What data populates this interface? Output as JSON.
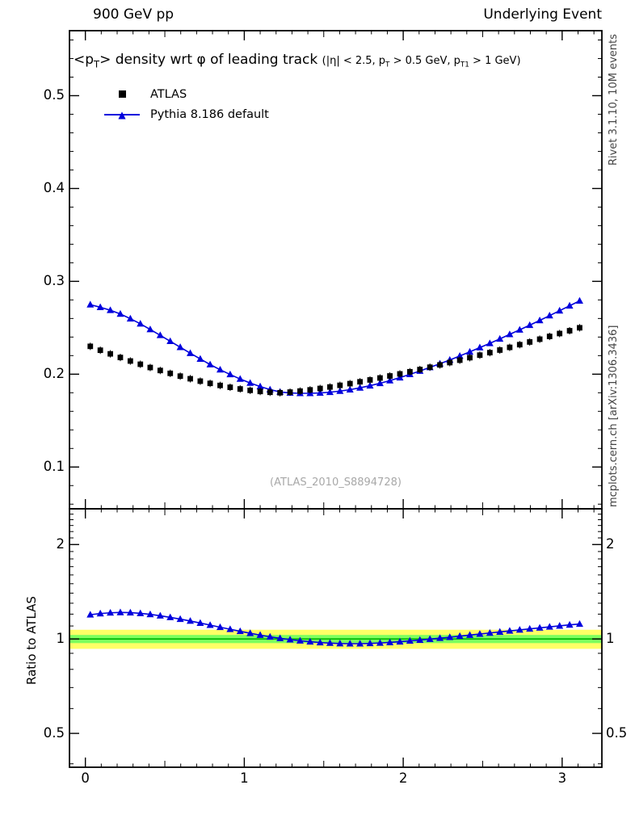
{
  "header": {
    "left": "900 GeV pp",
    "right": "Underlying Event"
  },
  "main_panel": {
    "title": {
      "p1": "<p",
      "p1_sub": "T",
      "p2": "> density wrt φ of leading track ",
      "c1": "(|η| < 2.5, p",
      "c1_sub": "T",
      "c2": " > 0.5 GeV, p",
      "c2_sub": "T1",
      "c3": " > 1 GeV)"
    },
    "legend": [
      {
        "label": "ATLAS",
        "marker": "square",
        "color": "#000000"
      },
      {
        "label": "Pythia 8.186 default",
        "marker": "triangle-line",
        "color": "#0000dd"
      }
    ],
    "watermark": "(ATLAS_2010_S8894728)"
  },
  "ratio_panel": {
    "ylabel": "Ratio to ATLAS"
  },
  "side_labels": {
    "right_top": "Rivet 3.1.10, 10M events",
    "right_bottom": "mcplots.cern.ch [arXiv:1306.3436]"
  },
  "chart_data": [
    {
      "type": "scatter",
      "panel": "main",
      "title": "<pT> density wrt φ of leading track (|η| < 2.5, pT > 0.5 GeV, pT1 > 1 GeV)",
      "xlabel": "",
      "ylabel": "",
      "xlim": [
        -0.1,
        3.25
      ],
      "ylim": [
        0.055,
        0.57
      ],
      "xticks": [
        0,
        1,
        2,
        3
      ],
      "xtick_labels": [
        "0",
        "1",
        "2",
        "3"
      ],
      "yticks": [
        0.1,
        0.2,
        0.3,
        0.4,
        0.5
      ],
      "ytick_labels": [
        "0.1",
        "0.2",
        "0.3",
        "0.4",
        "0.5"
      ],
      "legend_position": "top-left",
      "grid": false,
      "x": [
        0.031,
        0.094,
        0.157,
        0.22,
        0.283,
        0.346,
        0.408,
        0.471,
        0.534,
        0.597,
        0.66,
        0.723,
        0.785,
        0.848,
        0.911,
        0.974,
        1.037,
        1.1,
        1.162,
        1.225,
        1.288,
        1.351,
        1.414,
        1.477,
        1.539,
        1.602,
        1.665,
        1.728,
        1.791,
        1.854,
        1.916,
        1.979,
        2.042,
        2.105,
        2.168,
        2.231,
        2.293,
        2.356,
        2.419,
        2.482,
        2.545,
        2.608,
        2.67,
        2.733,
        2.796,
        2.859,
        2.921,
        2.984,
        3.047,
        3.11
      ],
      "series": [
        {
          "name": "ATLAS",
          "marker": "square",
          "color": "#000000",
          "line": false,
          "yerr": 0.004,
          "y": [
            0.23,
            0.2258,
            0.2219,
            0.218,
            0.2142,
            0.2107,
            0.2072,
            0.204,
            0.2009,
            0.1979,
            0.1951,
            0.1925,
            0.1901,
            0.1879,
            0.1859,
            0.1841,
            0.1826,
            0.1814,
            0.1805,
            0.18,
            0.1807,
            0.1818,
            0.1831,
            0.1846,
            0.1862,
            0.188,
            0.1898,
            0.1918,
            0.1938,
            0.1959,
            0.1981,
            0.2003,
            0.2026,
            0.205,
            0.2075,
            0.21,
            0.2125,
            0.2151,
            0.2178,
            0.2205,
            0.2232,
            0.226,
            0.2289,
            0.2318,
            0.2347,
            0.2377,
            0.2407,
            0.2438,
            0.2468,
            0.25
          ]
        },
        {
          "name": "Pythia 8.186 default",
          "marker": "triangle",
          "color": "#0000dd",
          "line": true,
          "y": [
            0.2749,
            0.2721,
            0.2689,
            0.2649,
            0.2598,
            0.2543,
            0.2482,
            0.2419,
            0.2355,
            0.229,
            0.2226,
            0.2164,
            0.2104,
            0.2048,
            0.1997,
            0.1948,
            0.1905,
            0.1867,
            0.1834,
            0.1809,
            0.1798,
            0.1794,
            0.1794,
            0.1798,
            0.1806,
            0.1818,
            0.1833,
            0.1853,
            0.1876,
            0.1902,
            0.1931,
            0.1963,
            0.1998,
            0.2034,
            0.2073,
            0.2113,
            0.2153,
            0.2196,
            0.2241,
            0.2287,
            0.2332,
            0.238,
            0.2429,
            0.2478,
            0.2528,
            0.2579,
            0.2631,
            0.2684,
            0.2737,
            0.279
          ]
        }
      ]
    },
    {
      "type": "line",
      "panel": "ratio",
      "title": "",
      "ylabel": "Ratio to ATLAS",
      "yscale": "log",
      "xlim": [
        -0.1,
        3.25
      ],
      "ylim": [
        0.39,
        2.6
      ],
      "yticks": [
        0.5,
        1,
        2
      ],
      "ytick_labels": [
        "0.5",
        "1",
        "2"
      ],
      "bands": {
        "yellow": [
          0.93,
          1.07
        ],
        "green": [
          0.97,
          1.03
        ],
        "colors": [
          "#ffff66",
          "#7dff5e"
        ],
        "ref_line": 1,
        "ref_color": "#00b400"
      },
      "x": [
        0.031,
        0.094,
        0.157,
        0.22,
        0.283,
        0.346,
        0.408,
        0.471,
        0.534,
        0.597,
        0.66,
        0.723,
        0.785,
        0.848,
        0.911,
        0.974,
        1.037,
        1.1,
        1.162,
        1.225,
        1.288,
        1.351,
        1.414,
        1.477,
        1.539,
        1.602,
        1.665,
        1.728,
        1.791,
        1.854,
        1.916,
        1.979,
        2.042,
        2.105,
        2.168,
        2.231,
        2.293,
        2.356,
        2.419,
        2.482,
        2.545,
        2.608,
        2.67,
        2.733,
        2.796,
        2.859,
        2.921,
        2.984,
        3.047,
        3.11
      ],
      "series": [
        {
          "name": "Pythia 8.186 default / ATLAS",
          "marker": "triangle",
          "color": "#0000dd",
          "line": true,
          "y": [
            1.195,
            1.205,
            1.212,
            1.215,
            1.213,
            1.207,
            1.198,
            1.186,
            1.172,
            1.157,
            1.141,
            1.124,
            1.107,
            1.09,
            1.074,
            1.058,
            1.043,
            1.029,
            1.016,
            1.005,
            0.995,
            0.987,
            0.98,
            0.974,
            0.97,
            0.967,
            0.966,
            0.966,
            0.968,
            0.971,
            0.975,
            0.98,
            0.986,
            0.992,
            0.999,
            1.006,
            1.013,
            1.021,
            1.029,
            1.037,
            1.045,
            1.053,
            1.061,
            1.069,
            1.077,
            1.085,
            1.093,
            1.101,
            1.109,
            1.116
          ]
        }
      ]
    }
  ]
}
